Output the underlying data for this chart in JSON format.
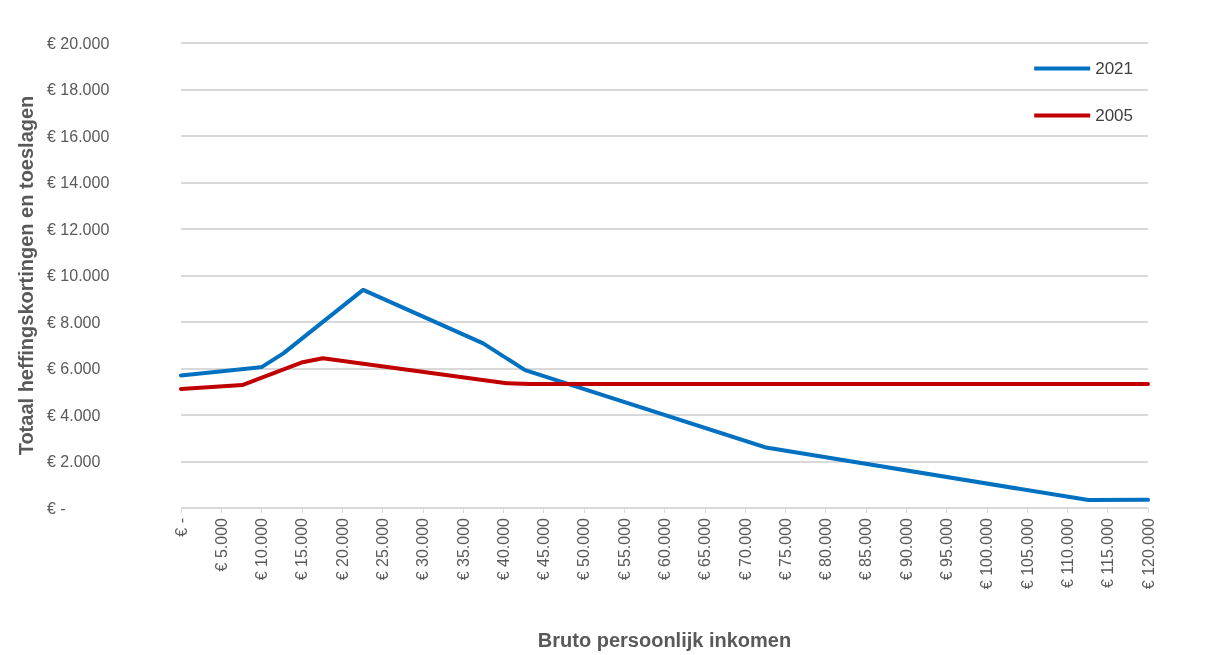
{
  "chart_data": {
    "type": "line",
    "xlabel": "Bruto persoonlijk inkomen",
    "ylabel": "Totaal heffingskortingen en toeslagen",
    "xlim": [
      0,
      120000
    ],
    "xticks": [
      {
        "value": 0,
        "label": "€ -"
      },
      {
        "value": 5000,
        "label": "€ 5.000"
      },
      {
        "value": 10000,
        "label": "€ 10.000"
      },
      {
        "value": 15000,
        "label": "€ 15.000"
      },
      {
        "value": 20000,
        "label": "€ 20.000"
      },
      {
        "value": 25000,
        "label": "€ 25.000"
      },
      {
        "value": 30000,
        "label": "€ 30.000"
      },
      {
        "value": 35000,
        "label": "€ 35.000"
      },
      {
        "value": 40000,
        "label": "€ 40.000"
      },
      {
        "value": 45000,
        "label": "€ 45.000"
      },
      {
        "value": 50000,
        "label": "€ 50.000"
      },
      {
        "value": 55000,
        "label": "€ 55.000"
      },
      {
        "value": 60000,
        "label": "€ 60.000"
      },
      {
        "value": 65000,
        "label": "€ 65.000"
      },
      {
        "value": 70000,
        "label": "€ 70.000"
      },
      {
        "value": 75000,
        "label": "€ 75.000"
      },
      {
        "value": 80000,
        "label": "€ 80.000"
      },
      {
        "value": 85000,
        "label": "€ 85.000"
      },
      {
        "value": 90000,
        "label": "€ 90.000"
      },
      {
        "value": 95000,
        "label": "€ 95.000"
      },
      {
        "value": 100000,
        "label": "€ 100.000"
      },
      {
        "value": 105000,
        "label": "€ 105.000"
      },
      {
        "value": 110000,
        "label": "€ 110.000"
      },
      {
        "value": 115000,
        "label": "€ 115.000"
      },
      {
        "value": 120000,
        "label": "€ 120.000"
      }
    ],
    "ylim": [
      0,
      20000
    ],
    "yticks": [
      {
        "value": 0,
        "label": "€ -"
      },
      {
        "value": 2000,
        "label": "€ 2.000"
      },
      {
        "value": 4000,
        "label": "€ 4.000"
      },
      {
        "value": 6000,
        "label": "€ 6.000"
      },
      {
        "value": 8000,
        "label": "€ 8.000"
      },
      {
        "value": 10000,
        "label": "€ 10.000"
      },
      {
        "value": 12000,
        "label": "€ 12.000"
      },
      {
        "value": 14000,
        "label": "€ 14.000"
      },
      {
        "value": 16000,
        "label": "€ 16.000"
      },
      {
        "value": 18000,
        "label": "€ 18.000"
      },
      {
        "value": 20000,
        "label": "€ 20.000"
      }
    ],
    "grid": "y",
    "legend": "top right",
    "marker": "none",
    "line_style": "solid",
    "series": [
      {
        "name": "2021",
        "color": "#0070c0",
        "x": [
          0,
          10000,
          12700,
          22600,
          37500,
          42700,
          72600,
          112600,
          120000
        ],
        "values": [
          5700,
          6060,
          6650,
          9380,
          7080,
          5930,
          2600,
          340,
          350
        ]
      },
      {
        "name": "2005",
        "color": "#c00000",
        "x": [
          0,
          7600,
          15100,
          17600,
          40400,
          43300,
          120000
        ],
        "values": [
          5120,
          5290,
          6270,
          6440,
          5370,
          5330,
          5330
        ]
      }
    ]
  }
}
